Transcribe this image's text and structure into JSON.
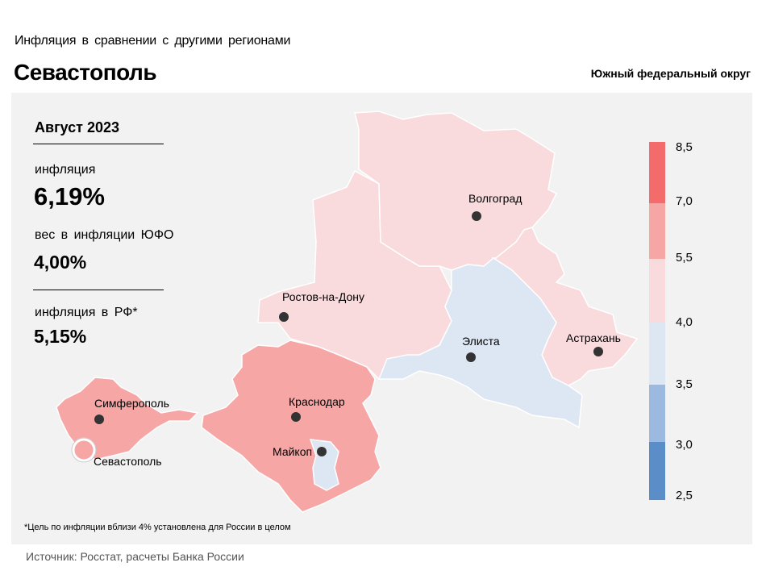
{
  "header": {
    "subtitle": "Инфляция  в сравнении  с другими  регионами",
    "title": "Севастополь",
    "district": "Южный федеральный округ"
  },
  "stats": {
    "date": "Август 2023",
    "inflation_label": "инфляция",
    "inflation_value": "6,19%",
    "weight_label": "вес в инфляции  ЮФО",
    "weight_value": "4,00%",
    "rf_label": "инфляция  в РФ*",
    "rf_value": "5,15%"
  },
  "legend": {
    "ticks": [
      "8,5",
      "7,0",
      "5,5",
      "4,0",
      "3,5",
      "3,0",
      "2,5"
    ],
    "colors": [
      "#f46b6b",
      "#f7a6a6",
      "#f9dadd",
      "#dde6f3",
      "#9cbadf",
      "#5b8dc9"
    ]
  },
  "map_data": {
    "highlight_color": "#f7a6a6",
    "cities": [
      {
        "id": "volgograd",
        "name": "Волгоград"
      },
      {
        "id": "rostov",
        "name": "Ростов-на-Дону"
      },
      {
        "id": "elista",
        "name": "Элиста"
      },
      {
        "id": "astrakhan",
        "name": "Астрахань"
      },
      {
        "id": "simferopol",
        "name": "Симферополь"
      },
      {
        "id": "krasnodar",
        "name": "Краснодар"
      },
      {
        "id": "maykop",
        "name": "Майкоп"
      },
      {
        "id": "sevastopol",
        "name": "Севастополь"
      }
    ]
  },
  "footnote": "*Цель по инфляции вблизи 4% установлена для России в целом",
  "source": "Источник: Росстат, расчеты Банка России"
}
